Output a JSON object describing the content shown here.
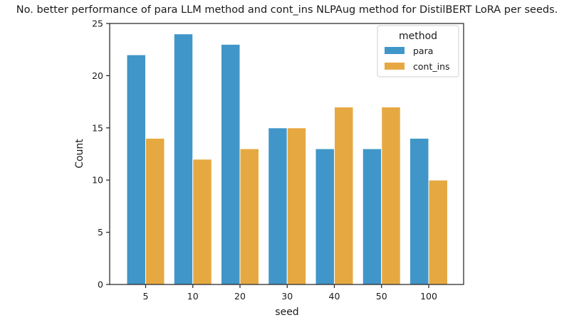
{
  "chart_data": {
    "type": "bar",
    "title": "No. better performance of para LLM method and cont_ins NLPAug method for DistilBERT LoRA per seeds.",
    "xlabel": "seed",
    "ylabel": "Count",
    "categories": [
      "5",
      "10",
      "20",
      "30",
      "40",
      "50",
      "100"
    ],
    "series": [
      {
        "name": "para",
        "values": [
          22,
          24,
          23,
          15,
          13,
          13,
          14
        ],
        "color": "#4196c9"
      },
      {
        "name": "cont_ins",
        "values": [
          14,
          12,
          13,
          15,
          17,
          17,
          10
        ],
        "color": "#e6a942"
      }
    ],
    "ylim": [
      0,
      25
    ],
    "yticks": [
      0,
      5,
      10,
      15,
      20,
      25
    ],
    "grid": false,
    "legend": {
      "title": "method",
      "placement": "top-right"
    }
  }
}
